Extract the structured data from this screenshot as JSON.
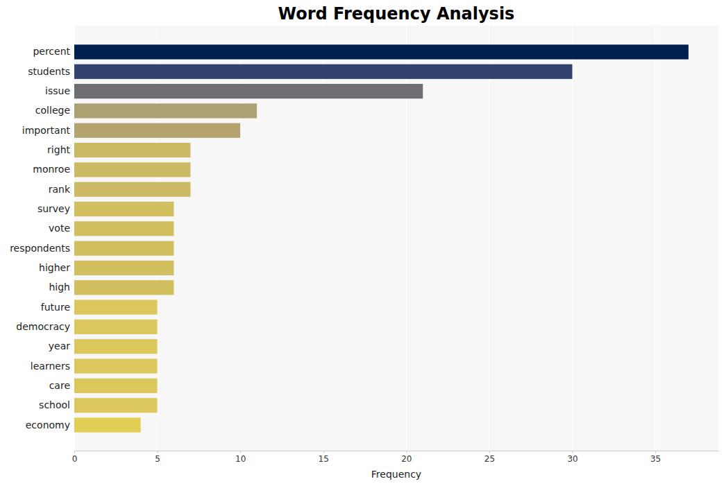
{
  "chart_data": {
    "type": "bar",
    "orientation": "horizontal",
    "title": "Word Frequency Analysis",
    "x_label": "Frequency",
    "categories": [
      "percent",
      "students",
      "issue",
      "college",
      "important",
      "right",
      "monroe",
      "rank",
      "survey",
      "vote",
      "respondents",
      "higher",
      "high",
      "future",
      "democracy",
      "year",
      "learners",
      "care",
      "school",
      "economy"
    ],
    "values": [
      37,
      30,
      21,
      11,
      10,
      7,
      7,
      7,
      6,
      6,
      6,
      6,
      6,
      5,
      5,
      5,
      5,
      5,
      5,
      4
    ],
    "colors": [
      "#00204f",
      "#32426e",
      "#6e6e73",
      "#ada071",
      "#b3a46e",
      "#ccb964",
      "#ccb964",
      "#ccb964",
      "#d2bf60",
      "#d2bf60",
      "#d2bf60",
      "#d2bf60",
      "#d2bf60",
      "#dbc75b",
      "#dbc75b",
      "#dbc75b",
      "#dbc75b",
      "#dbc75b",
      "#dbc75b",
      "#e2ce55"
    ],
    "xlim": [
      0,
      38.8
    ],
    "xticks": [
      0,
      5,
      10,
      15,
      20,
      25,
      30,
      35
    ],
    "grid": true
  }
}
